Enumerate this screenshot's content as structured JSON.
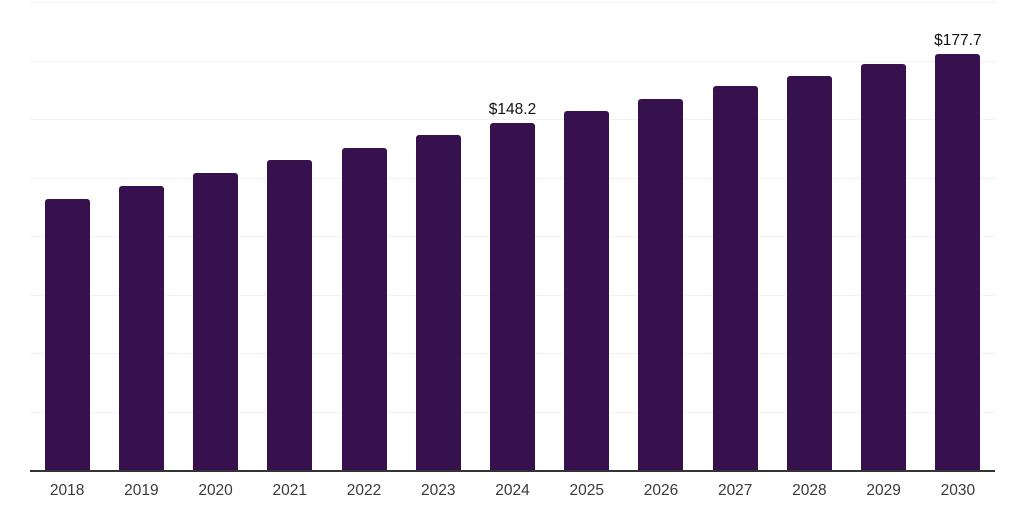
{
  "chart_data": {
    "type": "bar",
    "title": "",
    "xlabel": "",
    "ylabel": "",
    "categories": [
      "2018",
      "2019",
      "2020",
      "2021",
      "2022",
      "2023",
      "2024",
      "2025",
      "2026",
      "2027",
      "2028",
      "2029",
      "2030"
    ],
    "values": [
      116.0,
      121.5,
      127.0,
      132.4,
      137.8,
      143.1,
      148.2,
      153.5,
      158.7,
      164.0,
      168.5,
      173.6,
      177.7
    ],
    "data_labels": [
      "",
      "",
      "",
      "",
      "",
      "",
      "$148.2",
      "",
      "",
      "",
      "",
      "",
      "$177.7"
    ],
    "ylim": [
      0,
      200
    ],
    "gridline_step": 25,
    "grid": "horizontal",
    "legend": "none",
    "y_tick_labels_visible": false
  },
  "style": {
    "bar_color": "#36114e",
    "axis_line_color": "#333333",
    "gridline_color": "#f2f2f2",
    "tick_label_color": "#3a3a3a",
    "data_label_color": "#111111",
    "background_color": "#ffffff"
  }
}
